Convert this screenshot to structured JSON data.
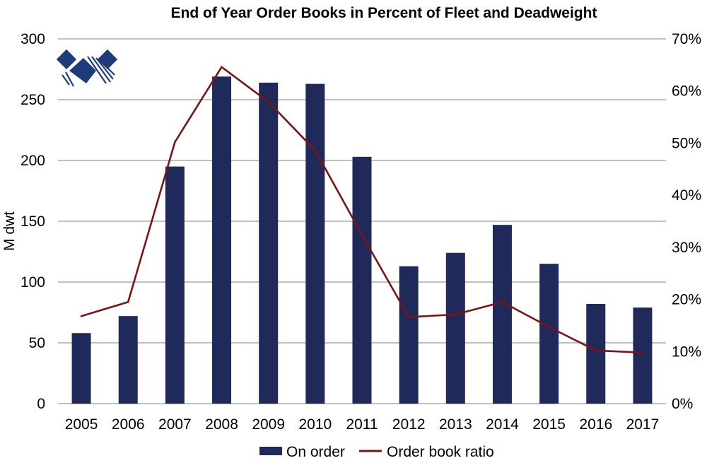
{
  "chart_data": {
    "type": "bar",
    "title": "End of Year Order Books in Percent of Fleet and Deadweight",
    "xlabel": "",
    "ylabel": "M dwt",
    "ylim": [
      0,
      300
    ],
    "y_ticks": [
      "0",
      "50",
      "100",
      "150",
      "200",
      "250",
      "300"
    ],
    "y2lim": [
      0,
      70
    ],
    "y2_ticks": [
      "0%",
      "10%",
      "20%",
      "30%",
      "40%",
      "50%",
      "60%",
      "70%"
    ],
    "categories": [
      "2005",
      "2006",
      "2007",
      "2008",
      "2009",
      "2010",
      "2011",
      "2012",
      "2013",
      "2014",
      "2015",
      "2016",
      "2017"
    ],
    "series": [
      {
        "name": "On order",
        "type": "bar",
        "axis": "left",
        "color": "#1F2A5A",
        "values": [
          58,
          72,
          195,
          269,
          264,
          263,
          203,
          113,
          124,
          147,
          115,
          82,
          79
        ]
      },
      {
        "name": "Order book ratio",
        "type": "line",
        "axis": "right",
        "color": "#7B1416",
        "values": [
          16.8,
          19.5,
          50.2,
          64.6,
          57.9,
          48.6,
          32.4,
          16.6,
          17.1,
          19.5,
          14.7,
          10.2,
          9.8
        ]
      }
    ],
    "legend": {
      "position": "bottom",
      "items": [
        "On order",
        "Order book ratio"
      ]
    },
    "gridlines": true
  },
  "logo": {
    "name": "company-logo",
    "color": "#1F3C7A"
  }
}
